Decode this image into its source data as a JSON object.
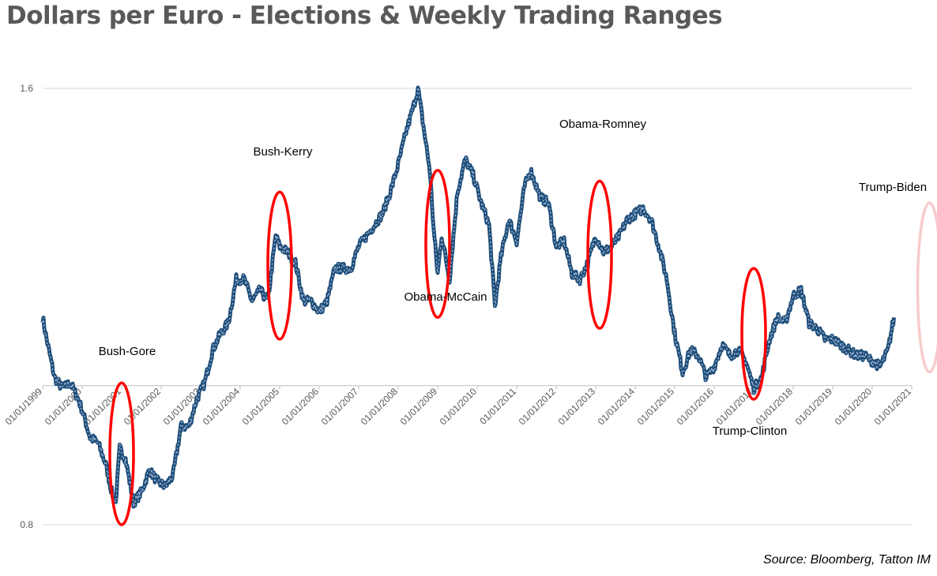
{
  "title": "Dollars per Euro - Elections & Weekly Trading Ranges",
  "source": "Source: Bloomberg, Tatton IM",
  "colors": {
    "series": "#1f4e79",
    "highlight": "#b4c7e7",
    "circle": "#ff0000",
    "circle_faded": "#f8cbcb",
    "grid": "#d9d9d9",
    "axis": "#bfbfbf"
  },
  "chart_data": {
    "type": "line",
    "y_ticks": [
      "1.6",
      "0.8"
    ],
    "ylim": [
      0.8,
      1.6
    ],
    "x_axis_crosses_at": 1.055,
    "x_ticks": [
      "01/01/1999",
      "01/01/2000",
      "01/01/2001",
      "01/01/2002",
      "01/01/2003",
      "01/01/2004",
      "01/01/2005",
      "01/01/2006",
      "01/01/2007",
      "01/01/2008",
      "01/01/2009",
      "01/01/2010",
      "01/01/2011",
      "01/01/2012",
      "01/01/2013",
      "01/01/2014",
      "01/01/2015",
      "01/01/2016",
      "01/01/2017",
      "01/01/2018",
      "01/01/2019",
      "01/01/2020",
      "01/01/2021"
    ],
    "xlim": [
      1999.0,
      2021.0
    ],
    "grid": true,
    "series": [
      {
        "x": [
          1999.0,
          1999.1,
          1999.3,
          1999.5,
          1999.7,
          1999.9,
          2000.0,
          2000.2,
          2000.4,
          2000.6,
          2000.75,
          2000.85,
          2000.95,
          2001.1,
          2001.3,
          2001.5,
          2001.7,
          2001.9,
          2002.1,
          2002.3,
          2002.5,
          2002.7,
          2002.9,
          2003.1,
          2003.3,
          2003.5,
          2003.7,
          2003.9,
          2004.1,
          2004.3,
          2004.5,
          2004.7,
          2004.9,
          2005.0,
          2005.2,
          2005.4,
          2005.6,
          2005.8,
          2006.0,
          2006.2,
          2006.4,
          2006.6,
          2006.8,
          2007.0,
          2007.2,
          2007.4,
          2007.6,
          2007.8,
          2008.0,
          2008.2,
          2008.4,
          2008.5,
          2008.7,
          2008.8,
          2008.9,
          2009.0,
          2009.1,
          2009.3,
          2009.5,
          2009.7,
          2009.9,
          2010.1,
          2010.3,
          2010.45,
          2010.6,
          2010.8,
          2011.0,
          2011.2,
          2011.35,
          2011.6,
          2011.8,
          2012.0,
          2012.2,
          2012.4,
          2012.6,
          2012.8,
          2013.0,
          2013.2,
          2013.4,
          2013.6,
          2013.8,
          2014.0,
          2014.2,
          2014.4,
          2014.6,
          2014.8,
          2015.0,
          2015.2,
          2015.4,
          2015.6,
          2015.8,
          2016.0,
          2016.2,
          2016.4,
          2016.6,
          2016.8,
          2017.0,
          2017.2,
          2017.4,
          2017.6,
          2017.8,
          2018.0,
          2018.2,
          2018.4,
          2018.6,
          2018.8,
          2019.0,
          2019.2,
          2019.4,
          2019.6,
          2019.8,
          2020.0,
          2020.2,
          2020.4,
          2020.55
        ],
        "y": [
          1.18,
          1.14,
          1.07,
          1.05,
          1.06,
          1.03,
          1.01,
          0.96,
          0.95,
          0.91,
          0.86,
          0.84,
          0.94,
          0.92,
          0.84,
          0.86,
          0.9,
          0.88,
          0.87,
          0.89,
          0.98,
          0.98,
          1.03,
          1.06,
          1.12,
          1.15,
          1.17,
          1.25,
          1.25,
          1.21,
          1.23,
          1.21,
          1.33,
          1.31,
          1.3,
          1.28,
          1.21,
          1.21,
          1.19,
          1.21,
          1.27,
          1.27,
          1.27,
          1.31,
          1.33,
          1.35,
          1.37,
          1.41,
          1.46,
          1.52,
          1.57,
          1.6,
          1.5,
          1.45,
          1.34,
          1.26,
          1.33,
          1.25,
          1.41,
          1.47,
          1.44,
          1.39,
          1.35,
          1.2,
          1.29,
          1.36,
          1.32,
          1.42,
          1.45,
          1.4,
          1.39,
          1.31,
          1.32,
          1.26,
          1.25,
          1.28,
          1.33,
          1.3,
          1.31,
          1.33,
          1.36,
          1.37,
          1.38,
          1.36,
          1.31,
          1.25,
          1.15,
          1.08,
          1.12,
          1.11,
          1.07,
          1.09,
          1.13,
          1.11,
          1.12,
          1.1,
          1.05,
          1.07,
          1.14,
          1.18,
          1.17,
          1.22,
          1.23,
          1.17,
          1.16,
          1.14,
          1.14,
          1.13,
          1.12,
          1.11,
          1.11,
          1.1,
          1.09,
          1.12,
          1.18
        ]
      }
    ],
    "annotations": [
      {
        "label": "Bush-Gore",
        "year": 2001.0,
        "ymin": 0.8,
        "ymax": 1.06,
        "faded": false
      },
      {
        "label": "Bush-Kerry",
        "year": 2005.0,
        "ymin": 1.14,
        "ymax": 1.41,
        "faded": false
      },
      {
        "label": "Obama-McCain",
        "year": 2009.0,
        "ymin": 1.18,
        "ymax": 1.45,
        "faded": false
      },
      {
        "label": "Obama-Romney",
        "year": 2013.1,
        "ymin": 1.16,
        "ymax": 1.43,
        "faded": false
      },
      {
        "label": "Trump-Clinton",
        "year": 2017.0,
        "ymin": 1.03,
        "ymax": 1.27,
        "faded": false
      },
      {
        "label": "Trump-Biden",
        "year": 2021.45,
        "ymin": 1.08,
        "ymax": 1.39,
        "faded": true
      }
    ]
  }
}
